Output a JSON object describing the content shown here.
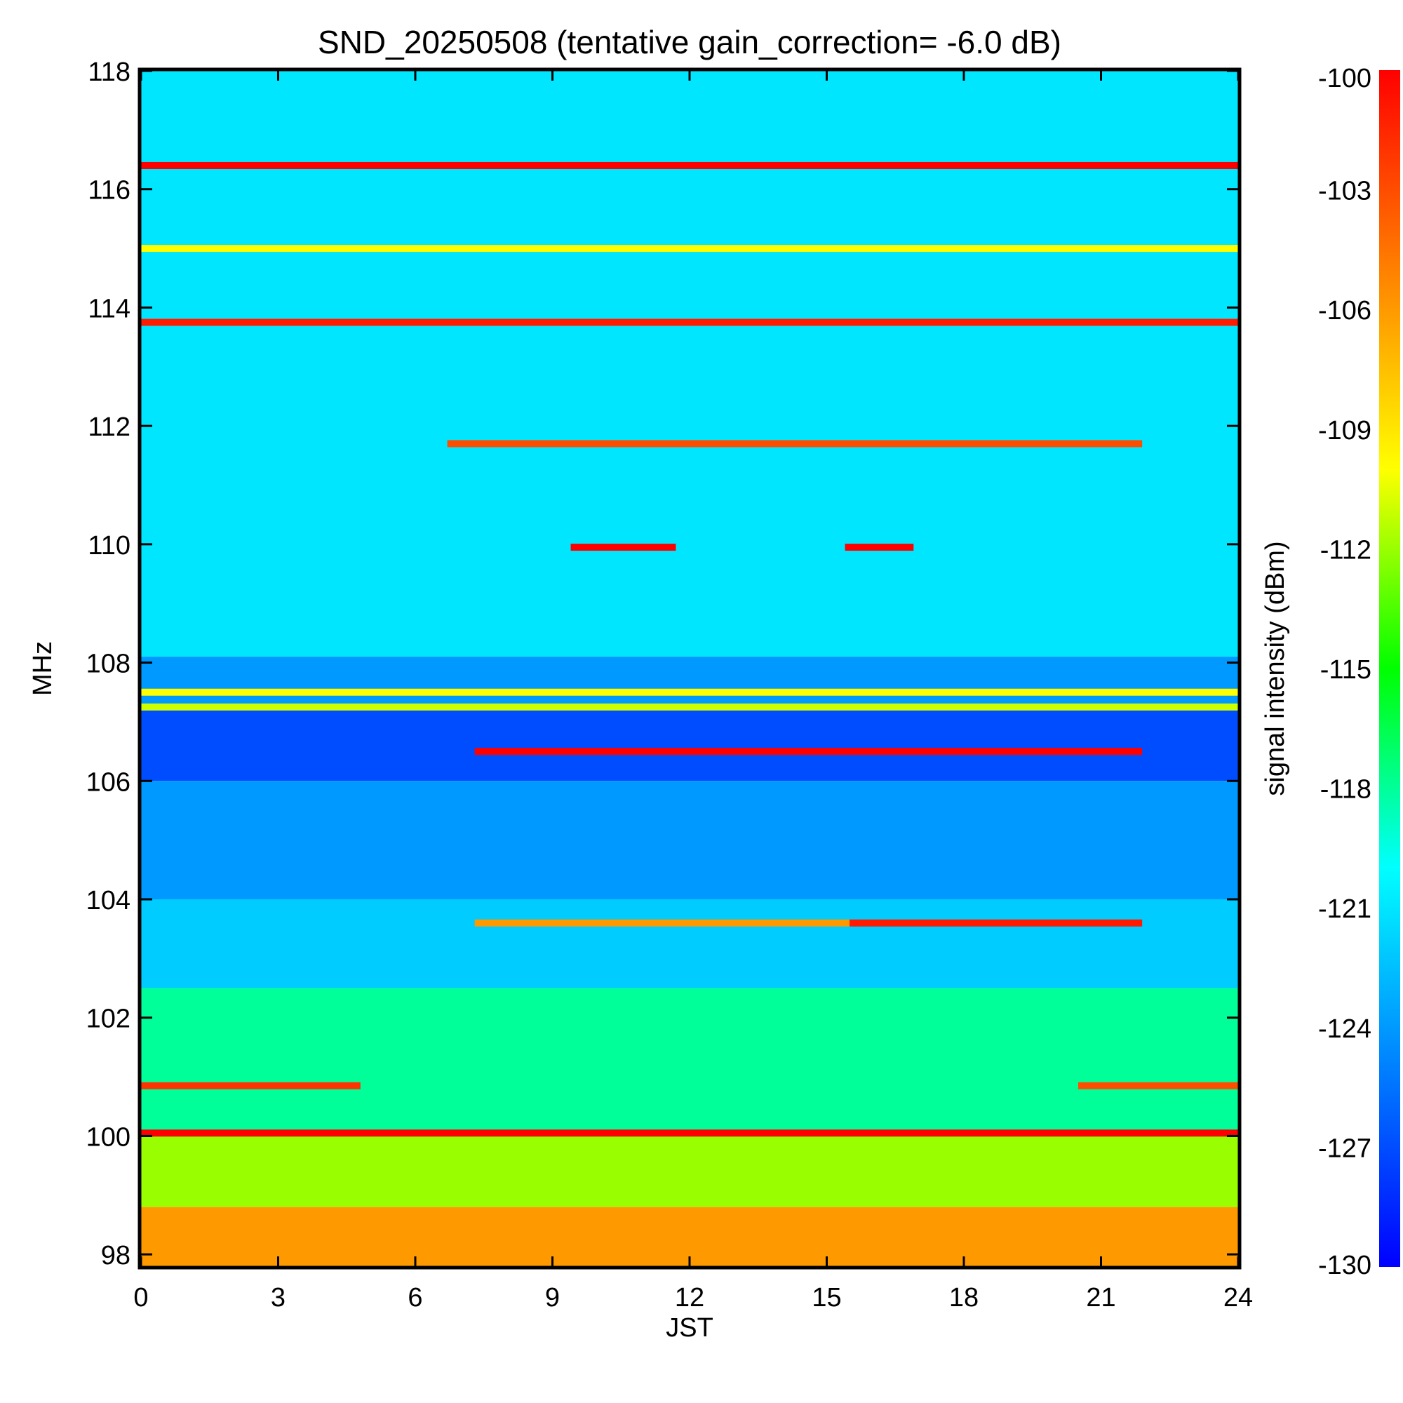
{
  "chart_data": {
    "type": "heatmap",
    "title": "SND_20250508 (tentative gain_correction= -6.0 dB)",
    "xlabel": "JST",
    "ylabel": "MHz",
    "colorbar_label": "signal intensity (dBm)",
    "xlim": [
      0,
      24
    ],
    "ylim": [
      97.8,
      118.0
    ],
    "xticks": [
      0,
      3,
      6,
      9,
      12,
      15,
      18,
      21,
      24
    ],
    "xtick_labels": [
      "0",
      "3",
      "6",
      "9",
      "12",
      "15",
      "18",
      "21",
      "24"
    ],
    "yticks": [
      98,
      100,
      102,
      104,
      106,
      108,
      110,
      112,
      114,
      116,
      118
    ],
    "ytick_labels": [
      "98",
      "100",
      "102",
      "104",
      "106",
      "108",
      "110",
      "112",
      "114",
      "116",
      "118"
    ],
    "colorbar_range": [
      -130,
      -100
    ],
    "colorbar_ticks": [
      -100,
      -103,
      -106,
      -109,
      -112,
      -115,
      -118,
      -121,
      -124,
      -127,
      -130
    ],
    "colorbar_tick_labels": [
      "-100",
      "-103",
      "-106",
      "-109",
      "-112",
      "-115",
      "-118",
      "-121",
      "-124",
      "-127",
      "-130"
    ],
    "colormap": [
      "#0000ff",
      "#0080ff",
      "#00ffff",
      "#00ff00",
      "#ffff00",
      "#ff8000",
      "#ff0000"
    ],
    "background_bands": [
      {
        "f_low": 108.1,
        "f_high": 118.0,
        "level_dbm": -121
      },
      {
        "f_low": 107.3,
        "f_high": 108.1,
        "level_dbm": -124
      },
      {
        "f_low": 106.0,
        "f_high": 107.3,
        "level_dbm": -127
      },
      {
        "f_low": 104.0,
        "f_high": 106.0,
        "level_dbm": -124
      },
      {
        "f_low": 102.5,
        "f_high": 104.0,
        "level_dbm": -122
      },
      {
        "f_low": 100.0,
        "f_high": 102.5,
        "level_dbm": -118
      },
      {
        "f_low": 98.8,
        "f_high": 100.0,
        "level_dbm": -112
      },
      {
        "f_low": 97.8,
        "f_high": 98.8,
        "level_dbm": -106
      }
    ],
    "signals": [
      {
        "freq": 116.4,
        "t_start": 0,
        "t_end": 24,
        "level_dbm": -100
      },
      {
        "freq": 115.0,
        "t_start": 0,
        "t_end": 24,
        "level_dbm": -110
      },
      {
        "freq": 113.75,
        "t_start": 0,
        "t_end": 24,
        "level_dbm": -101
      },
      {
        "freq": 111.7,
        "t_start": 6.7,
        "t_end": 21.9,
        "level_dbm": -103
      },
      {
        "freq": 109.95,
        "t_start": 9.4,
        "t_end": 11.7,
        "level_dbm": -100
      },
      {
        "freq": 109.95,
        "t_start": 15.4,
        "t_end": 16.9,
        "level_dbm": -100
      },
      {
        "freq": 107.5,
        "t_start": 0,
        "t_end": 24,
        "level_dbm": -110
      },
      {
        "freq": 107.25,
        "t_start": 0,
        "t_end": 24,
        "level_dbm": -111
      },
      {
        "freq": 106.5,
        "t_start": 7.3,
        "t_end": 21.9,
        "level_dbm": -100
      },
      {
        "freq": 103.6,
        "t_start": 7.3,
        "t_end": 15.5,
        "level_dbm": -106
      },
      {
        "freq": 103.6,
        "t_start": 15.5,
        "t_end": 21.9,
        "level_dbm": -101
      },
      {
        "freq": 100.85,
        "t_start": 0,
        "t_end": 4.8,
        "level_dbm": -102
      },
      {
        "freq": 100.85,
        "t_start": 20.5,
        "t_end": 24,
        "level_dbm": -103
      },
      {
        "freq": 100.05,
        "t_start": 0,
        "t_end": 24,
        "level_dbm": -100
      }
    ]
  }
}
